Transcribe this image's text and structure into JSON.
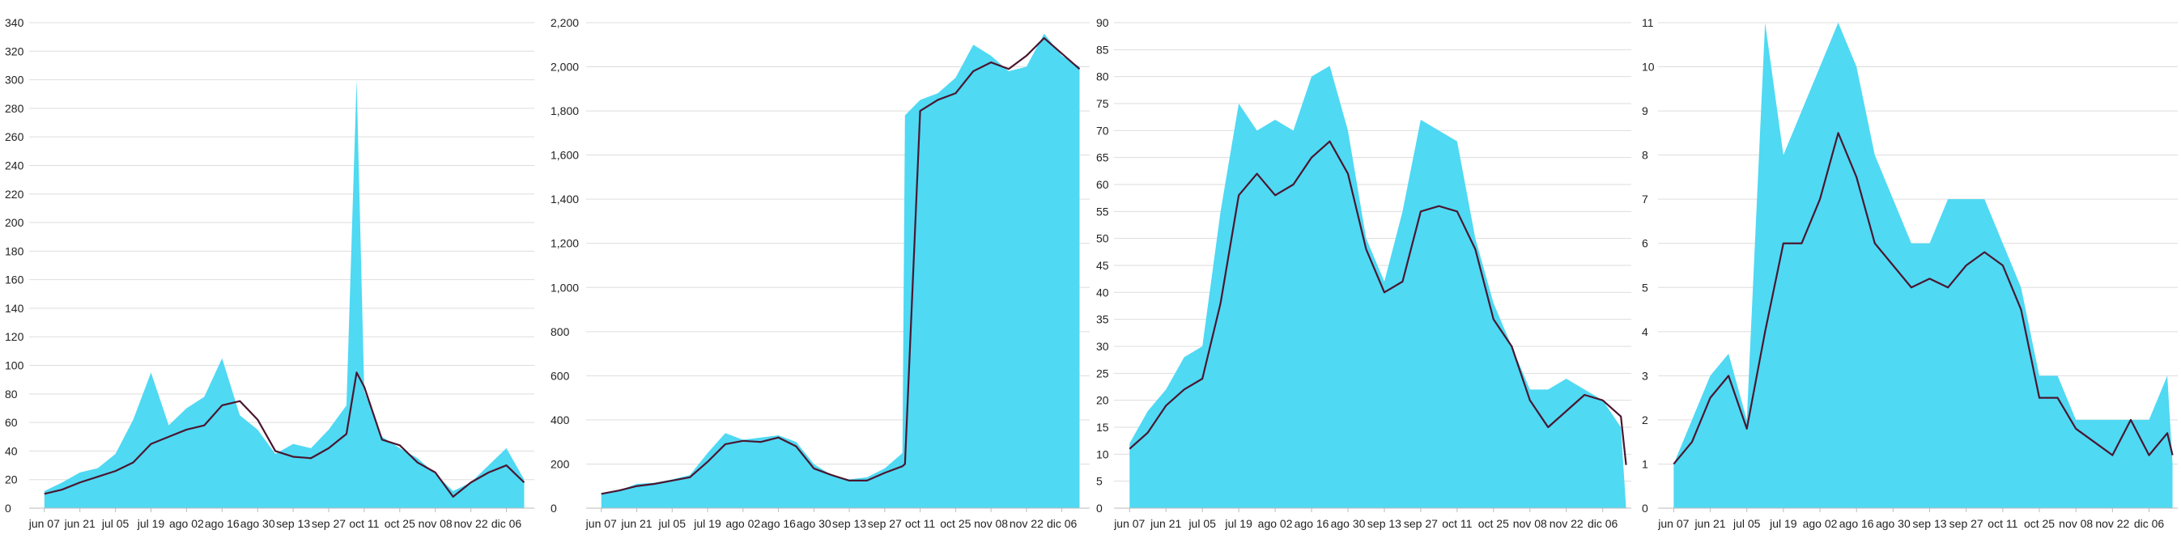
{
  "colors": {
    "area": "#4fd9f3",
    "line": "#4a1630",
    "grid": "#dddddd",
    "text": "#222222"
  },
  "chart_data": [
    {
      "type": "area",
      "title": "",
      "xlabel": "",
      "ylabel": "",
      "ylim": [
        0,
        340
      ],
      "yticks": [
        0,
        20,
        40,
        60,
        80,
        100,
        120,
        140,
        160,
        180,
        200,
        220,
        240,
        260,
        280,
        300,
        320,
        340
      ],
      "grid": true,
      "x_tick_labels": [
        "jun 07",
        "jun 21",
        "jul 05",
        "jul 19",
        "ago 02",
        "ago 16",
        "ago 30",
        "sep 13",
        "sep 27",
        "oct 11",
        "oct 25",
        "nov 08",
        "nov 22",
        "dic 06"
      ],
      "series": [
        {
          "role": "daily",
          "x": [
            "jun 07",
            "jun 14",
            "jun 21",
            "jun 28",
            "jul 05",
            "jul 12",
            "jul 19",
            "jul 26",
            "ago 02",
            "ago 09",
            "ago 16",
            "ago 23",
            "ago 30",
            "sep 06",
            "sep 13",
            "sep 20",
            "sep 27",
            "oct 04",
            "oct 08",
            "oct 11",
            "oct 18",
            "oct 25",
            "nov 01",
            "nov 08",
            "nov 15",
            "nov 22",
            "nov 29",
            "dic 06",
            "dic 13"
          ],
          "values": [
            12,
            18,
            25,
            28,
            38,
            62,
            95,
            58,
            70,
            78,
            105,
            65,
            55,
            38,
            45,
            42,
            55,
            72,
            300,
            82,
            50,
            42,
            35,
            24,
            12,
            18,
            30,
            42,
            20
          ]
        },
        {
          "role": "rolling average",
          "x": [
            "jun 07",
            "jun 14",
            "jun 21",
            "jun 28",
            "jul 05",
            "jul 12",
            "jul 19",
            "jul 26",
            "ago 02",
            "ago 09",
            "ago 16",
            "ago 23",
            "ago 30",
            "sep 06",
            "sep 13",
            "sep 20",
            "sep 27",
            "oct 04",
            "oct 08",
            "oct 11",
            "oct 18",
            "oct 25",
            "nov 01",
            "nov 08",
            "nov 15",
            "nov 22",
            "nov 29",
            "dic 06",
            "dic 13"
          ],
          "values": [
            10,
            13,
            18,
            22,
            26,
            32,
            45,
            50,
            55,
            58,
            72,
            75,
            62,
            40,
            36,
            35,
            42,
            52,
            95,
            85,
            48,
            44,
            32,
            25,
            8,
            18,
            25,
            30,
            18
          ]
        }
      ]
    },
    {
      "type": "area",
      "title": "",
      "xlabel": "",
      "ylabel": "",
      "ylim": [
        0,
        2200
      ],
      "yticks": [
        0,
        200,
        400,
        600,
        800,
        1000,
        1200,
        1400,
        1600,
        1800,
        2000,
        2200
      ],
      "grid": true,
      "x_tick_labels": [
        "jun 07",
        "jun 21",
        "jul 05",
        "jul 19",
        "ago 02",
        "ago 16",
        "ago 30",
        "sep 13",
        "sep 27",
        "oct 11",
        "oct 25",
        "nov 08",
        "nov 22",
        "dic 06"
      ],
      "series": [
        {
          "role": "daily",
          "x": [
            "jun 07",
            "jun 14",
            "jun 21",
            "jun 28",
            "jul 05",
            "jul 12",
            "jul 19",
            "jul 26",
            "ago 02",
            "ago 09",
            "ago 16",
            "ago 23",
            "ago 30",
            "sep 06",
            "sep 13",
            "sep 20",
            "sep 27",
            "oct 04",
            "oct 05",
            "oct 11",
            "oct 18",
            "oct 25",
            "nov 01",
            "nov 08",
            "nov 15",
            "nov 22",
            "nov 29",
            "dic 06",
            "dic 13"
          ],
          "values": [
            65,
            80,
            110,
            115,
            130,
            150,
            250,
            340,
            310,
            320,
            330,
            300,
            200,
            150,
            130,
            140,
            180,
            250,
            1780,
            1850,
            1880,
            1950,
            2100,
            2050,
            1980,
            2000,
            2150,
            2050,
            2000
          ]
        },
        {
          "role": "rolling average",
          "x": [
            "jun 07",
            "jun 14",
            "jun 21",
            "jun 28",
            "jul 05",
            "jul 12",
            "jul 19",
            "jul 26",
            "ago 02",
            "ago 09",
            "ago 16",
            "ago 23",
            "ago 30",
            "sep 06",
            "sep 13",
            "sep 20",
            "sep 27",
            "oct 04",
            "oct 05",
            "oct 11",
            "oct 18",
            "oct 25",
            "nov 01",
            "nov 08",
            "nov 15",
            "nov 22",
            "nov 29",
            "dic 06",
            "dic 13"
          ],
          "values": [
            65,
            80,
            100,
            110,
            125,
            140,
            210,
            290,
            305,
            300,
            320,
            280,
            180,
            150,
            125,
            125,
            160,
            190,
            200,
            1800,
            1850,
            1880,
            1980,
            2020,
            1990,
            2050,
            2130,
            2060,
            1990
          ]
        }
      ]
    },
    {
      "type": "area",
      "title": "",
      "xlabel": "",
      "ylabel": "",
      "ylim": [
        0,
        90
      ],
      "yticks": [
        0,
        5,
        10,
        15,
        20,
        25,
        30,
        35,
        40,
        45,
        50,
        55,
        60,
        65,
        70,
        75,
        80,
        85,
        90
      ],
      "grid": true,
      "x_tick_labels": [
        "jun 07",
        "jun 21",
        "jul 05",
        "jul 19",
        "ago 02",
        "ago 16",
        "ago 30",
        "sep 13",
        "sep 27",
        "oct 11",
        "oct 25",
        "nov 08",
        "nov 22",
        "dic 06"
      ],
      "series": [
        {
          "role": "daily",
          "x": [
            "jun 07",
            "jun 14",
            "jun 21",
            "jun 28",
            "jul 05",
            "jul 12",
            "jul 19",
            "jul 26",
            "ago 02",
            "ago 09",
            "ago 16",
            "ago 23",
            "ago 30",
            "sep 06",
            "sep 13",
            "sep 20",
            "sep 27",
            "oct 04",
            "oct 11",
            "oct 18",
            "oct 25",
            "nov 01",
            "nov 08",
            "nov 15",
            "nov 22",
            "nov 29",
            "dic 06",
            "dic 13",
            "dic 15"
          ],
          "values": [
            12,
            18,
            22,
            28,
            30,
            55,
            75,
            70,
            72,
            70,
            80,
            82,
            70,
            50,
            42,
            55,
            72,
            70,
            68,
            50,
            38,
            30,
            22,
            22,
            24,
            22,
            20,
            15,
            0
          ]
        },
        {
          "role": "rolling average",
          "x": [
            "jun 07",
            "jun 14",
            "jun 21",
            "jun 28",
            "jul 05",
            "jul 12",
            "jul 19",
            "jul 26",
            "ago 02",
            "ago 09",
            "ago 16",
            "ago 23",
            "ago 30",
            "sep 06",
            "sep 13",
            "sep 20",
            "sep 27",
            "oct 04",
            "oct 11",
            "oct 18",
            "oct 25",
            "nov 01",
            "nov 08",
            "nov 15",
            "nov 22",
            "nov 29",
            "dic 06",
            "dic 13",
            "dic 15"
          ],
          "values": [
            11,
            14,
            19,
            22,
            24,
            38,
            58,
            62,
            58,
            60,
            65,
            68,
            62,
            48,
            40,
            42,
            55,
            56,
            55,
            48,
            35,
            30,
            20,
            15,
            18,
            21,
            20,
            17,
            8
          ]
        }
      ]
    },
    {
      "type": "area",
      "title": "",
      "xlabel": "",
      "ylabel": "",
      "ylim": [
        0,
        11
      ],
      "yticks": [
        0,
        1,
        2,
        3,
        4,
        5,
        6,
        7,
        8,
        9,
        10,
        11
      ],
      "grid": true,
      "x_tick_labels": [
        "jun 07",
        "jun 21",
        "jul 05",
        "jul 19",
        "ago 02",
        "ago 16",
        "ago 30",
        "sep 13",
        "sep 27",
        "oct 11",
        "oct 25",
        "nov 08",
        "nov 22",
        "dic 06"
      ],
      "series": [
        {
          "role": "daily",
          "x": [
            "jun 07",
            "jun 14",
            "jun 21",
            "jun 28",
            "jul 05",
            "jul 12",
            "jul 19",
            "jul 26",
            "ago 02",
            "ago 09",
            "ago 16",
            "ago 23",
            "ago 30",
            "sep 06",
            "sep 13",
            "sep 20",
            "sep 27",
            "oct 04",
            "oct 11",
            "oct 18",
            "oct 25",
            "nov 01",
            "nov 08",
            "nov 15",
            "nov 22",
            "nov 29",
            "dic 06",
            "dic 13",
            "dic 15"
          ],
          "values": [
            1,
            2,
            3,
            3.5,
            2,
            11,
            8,
            9,
            10,
            11,
            10,
            8,
            7,
            6,
            6,
            7,
            7,
            7,
            6,
            5,
            3,
            3,
            2,
            2,
            2,
            2,
            2,
            3,
            1
          ]
        },
        {
          "role": "rolling average",
          "x": [
            "jun 07",
            "jun 14",
            "jun 21",
            "jun 28",
            "jul 05",
            "jul 12",
            "jul 19",
            "jul 26",
            "ago 02",
            "ago 09",
            "ago 16",
            "ago 23",
            "ago 30",
            "sep 06",
            "sep 13",
            "sep 20",
            "sep 27",
            "oct 04",
            "oct 11",
            "oct 18",
            "oct 25",
            "nov 01",
            "nov 08",
            "nov 15",
            "nov 22",
            "nov 29",
            "dic 06",
            "dic 13",
            "dic 15"
          ],
          "values": [
            1,
            1.5,
            2.5,
            3,
            1.8,
            4,
            6,
            6,
            7,
            8.5,
            7.5,
            6,
            5.5,
            5,
            5.2,
            5,
            5.5,
            5.8,
            5.5,
            4.5,
            2.5,
            2.5,
            1.8,
            1.5,
            1.2,
            2,
            1.2,
            1.7,
            1.2
          ]
        }
      ]
    }
  ]
}
